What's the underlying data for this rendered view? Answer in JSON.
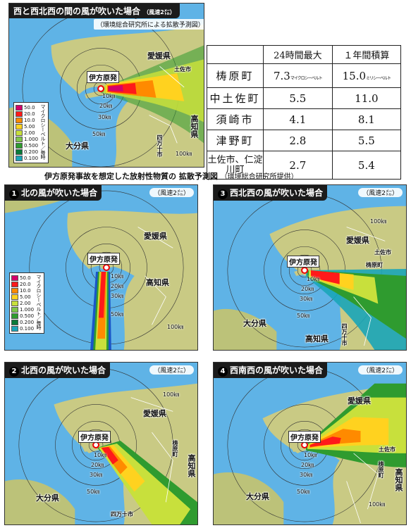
{
  "colors": {
    "sea": "#5fb3e6",
    "land": "#c9ca84",
    "levels": [
      "#d4006b",
      "#ff1a1a",
      "#ff8a00",
      "#ffd21f",
      "#c8e03c",
      "#7fc64a",
      "#2f9b2f",
      "#0a7a3a",
      "#1aa5b8",
      "#1a56c8"
    ]
  },
  "legend": {
    "values": [
      "50.0",
      "20.0",
      "10.0",
      "5.00",
      "2.00",
      "1.000",
      "0.500",
      "0.200",
      "0.100"
    ],
    "unit": "マイクロシーベルト／毎時"
  },
  "labels": {
    "plant": "伊方原発",
    "ehime": "愛媛県",
    "kochi": "高知県",
    "oita": "大分県",
    "tosa": "土佐市",
    "yusuhara": "梼原町",
    "shimanto": "四万十市",
    "km10": "10㎞",
    "km20": "20㎞",
    "km30": "30㎞",
    "km50": "50㎞",
    "km100": "100㎞"
  },
  "panel_main": {
    "title": "西と西北西の間の風が吹いた場合",
    "speed": "（風速2㍍）",
    "note": "（環境総合研究所による拡散予測図）"
  },
  "table": {
    "headers": [
      "",
      "24時間最大",
      "１年間積算"
    ],
    "rows": [
      {
        "name": "梼原町",
        "max24": "7.3",
        "max24_unit": "マイクロシーベルト",
        "year": "15.0",
        "year_unit": "ミリシーベルト"
      },
      {
        "name": "中土佐町",
        "max24": "5.5",
        "year": "11.0"
      },
      {
        "name": "須崎市",
        "max24": "4.1",
        "year": "8.1"
      },
      {
        "name": "津野町",
        "max24": "2.8",
        "year": "5.5"
      },
      {
        "name": "土佐市、仁淀川町",
        "max24": "2.7",
        "year": "5.4"
      }
    ]
  },
  "caption": {
    "main": "伊方原発事故を想定した放射性物質の 拡散予測図",
    "source": "（環境総合研究所提供）"
  },
  "panels": [
    {
      "num": "1",
      "title": "北の風が吹いた場合",
      "speed": "（風速2㍍）"
    },
    {
      "num": "3",
      "title": "西北西の風が吹いた場合",
      "speed": "（風速2㍍）"
    },
    {
      "num": "2",
      "title": "北西の風が吹いた場合",
      "speed": "（風速2㍍）"
    },
    {
      "num": "4",
      "title": "西南西の風が吹いた場合",
      "speed": "（風速2㍍）"
    }
  ]
}
